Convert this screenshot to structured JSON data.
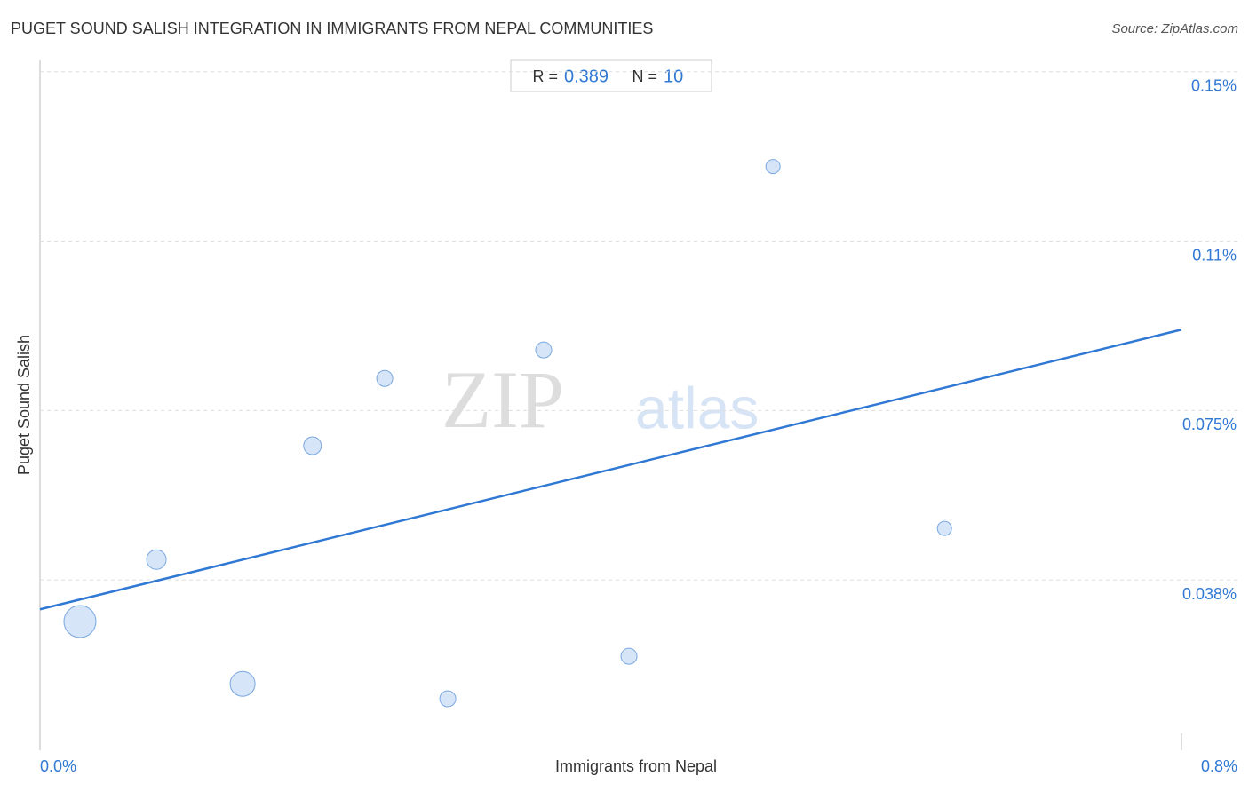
{
  "chart_data": {
    "type": "scatter",
    "title": "PUGET SOUND SALISH INTEGRATION IN IMMIGRANTS FROM NEPAL COMMUNITIES",
    "source": "Source: ZipAtlas.com",
    "x_label": "Immigrants from Nepal",
    "y_label": "Puget Sound Salish",
    "watermark": [
      "ZIP",
      "atlas"
    ],
    "stats": {
      "r_label": "R =",
      "r": 0.389,
      "n_label": "N =",
      "n": 10
    },
    "color": "#cfe0f7",
    "stroke": "#7aa8e0",
    "line_color": "#2f78d4",
    "x": [
      0.028,
      0.0816,
      0.142,
      0.191,
      0.2416,
      0.2858,
      0.353,
      0.4128,
      0.5137,
      0.6339
    ],
    "values": [
      0.0283,
      0.042,
      0.0145,
      0.0672,
      0.0821,
      0.0112,
      0.0884,
      0.0206,
      0.129,
      0.0489
    ],
    "sizes": [
      18,
      11,
      14,
      10,
      9,
      9,
      9,
      9,
      8,
      8
    ],
    "trendline": {
      "x": [
        0,
        0.8
      ],
      "y": [
        0.031,
        0.0929
      ]
    },
    "xlim": [
      0,
      0.8
    ],
    "ylim": [
      0,
      0.1525
    ],
    "xticks": [
      {
        "value": 0,
        "label": "0.0%"
      },
      {
        "value": 0.8,
        "label": "0.8%"
      }
    ],
    "yticks": [
      {
        "value": 0.0375,
        "label": "0.038%"
      },
      {
        "value": 0.075,
        "label": "0.075%"
      },
      {
        "value": 0.1125,
        "label": "0.11%"
      },
      {
        "value": 0.15,
        "label": "0.15%"
      }
    ],
    "grid": true
  }
}
